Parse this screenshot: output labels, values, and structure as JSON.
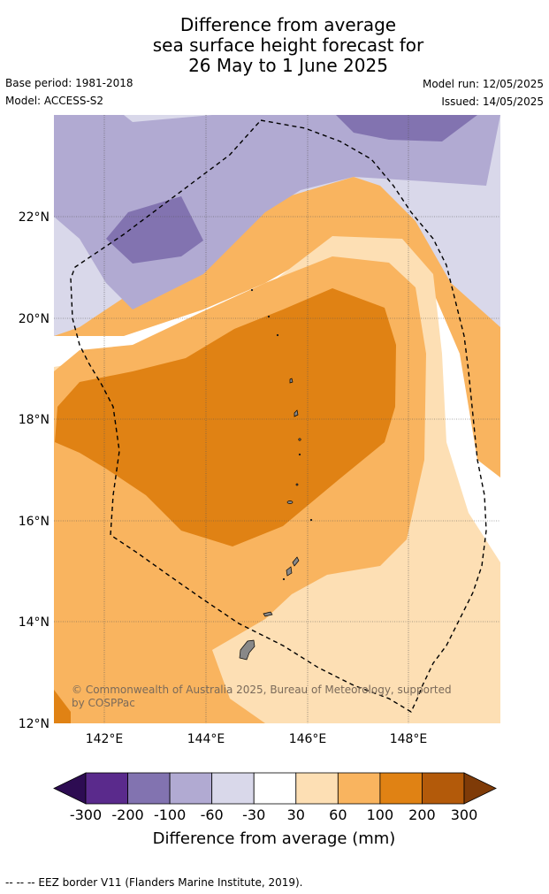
{
  "title": {
    "line1": "Difference from average",
    "line2": "sea surface height forecast for",
    "line3": "26 May to 1 June 2025"
  },
  "meta": {
    "base_period": "Base period: 1981-2018",
    "model": "Model: ACCESS-S2",
    "model_run": "Model run: 12/05/2025",
    "issued": "Issued: 14/05/2025"
  },
  "map": {
    "lat_ticks": [
      "22°N",
      "20°N",
      "18°N",
      "16°N",
      "14°N",
      "12°N"
    ],
    "lon_ticks": [
      "142°E",
      "144°E",
      "146°E",
      "148°E"
    ],
    "copyright_line1": "© Commonwealth of Australia 2025, Bureau of Meteorology, supported",
    "copyright_line2": "by COSPPac"
  },
  "colorbar": {
    "labels": [
      "-300",
      "-200",
      "-100",
      "-60",
      "-30",
      "30",
      "60",
      "100",
      "200",
      "300"
    ],
    "colors": [
      "#2d0c52",
      "#5a2a8c",
      "#8273b0",
      "#b1aad2",
      "#d9d8ea",
      "#ffffff",
      "#fddfb4",
      "#f9b45f",
      "#e08214",
      "#b35a0a",
      "#7f3b08"
    ],
    "title": "Difference from average (mm)"
  },
  "footer": {
    "eez_note": "--  --  -- EEZ border V11 (Flanders Marine Institute, 2019)."
  }
}
